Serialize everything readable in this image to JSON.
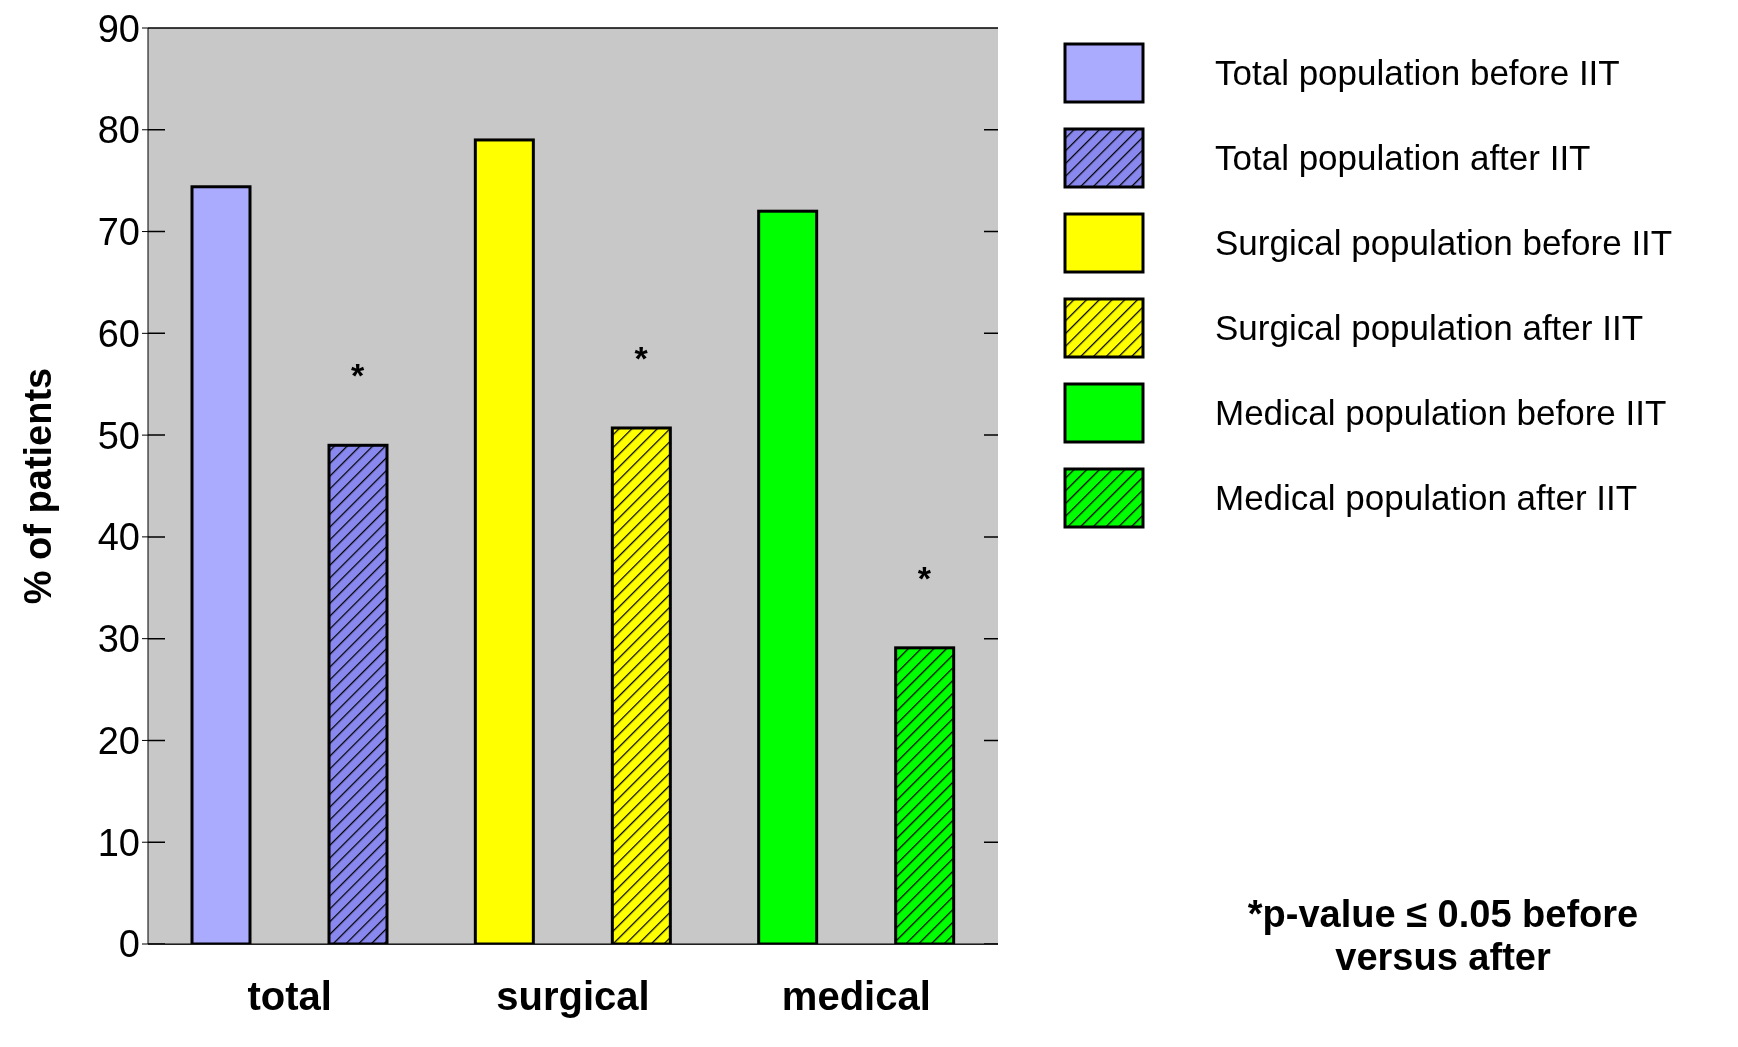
{
  "chart_data": {
    "type": "bar",
    "ylabel": "% of patients",
    "categories": [
      "total",
      "surgical",
      "medical"
    ],
    "series": [
      {
        "name": "Total population before IIT",
        "color": "#aaaaff",
        "values": [
          74.4,
          null,
          null
        ]
      },
      {
        "name": "Total population after IIT",
        "color": "#8888ee",
        "values": [
          49.0,
          null,
          null
        ]
      },
      {
        "name": "Surgical population before IIT",
        "color": "#ffff00",
        "values": [
          null,
          79.0,
          null
        ]
      },
      {
        "name": "Surgical population after IIT",
        "color": "#ffff00",
        "values": [
          null,
          50.7,
          null
        ]
      },
      {
        "name": "Medical population before IIT",
        "color": "#00ff00",
        "values": [
          null,
          null,
          72.0
        ]
      },
      {
        "name": "Medical population after IIT",
        "color": "#00ff00",
        "values": [
          null,
          null,
          29.1
        ]
      }
    ],
    "ylim": [
      0,
      90
    ],
    "yticks": [
      0,
      10,
      20,
      30,
      40,
      50,
      60,
      70,
      80,
      90
    ],
    "grid": "y",
    "legend": "right",
    "annotations": [
      "*",
      "*",
      "*",
      "*p-value ≤ 0.05 before versus after"
    ]
  }
}
